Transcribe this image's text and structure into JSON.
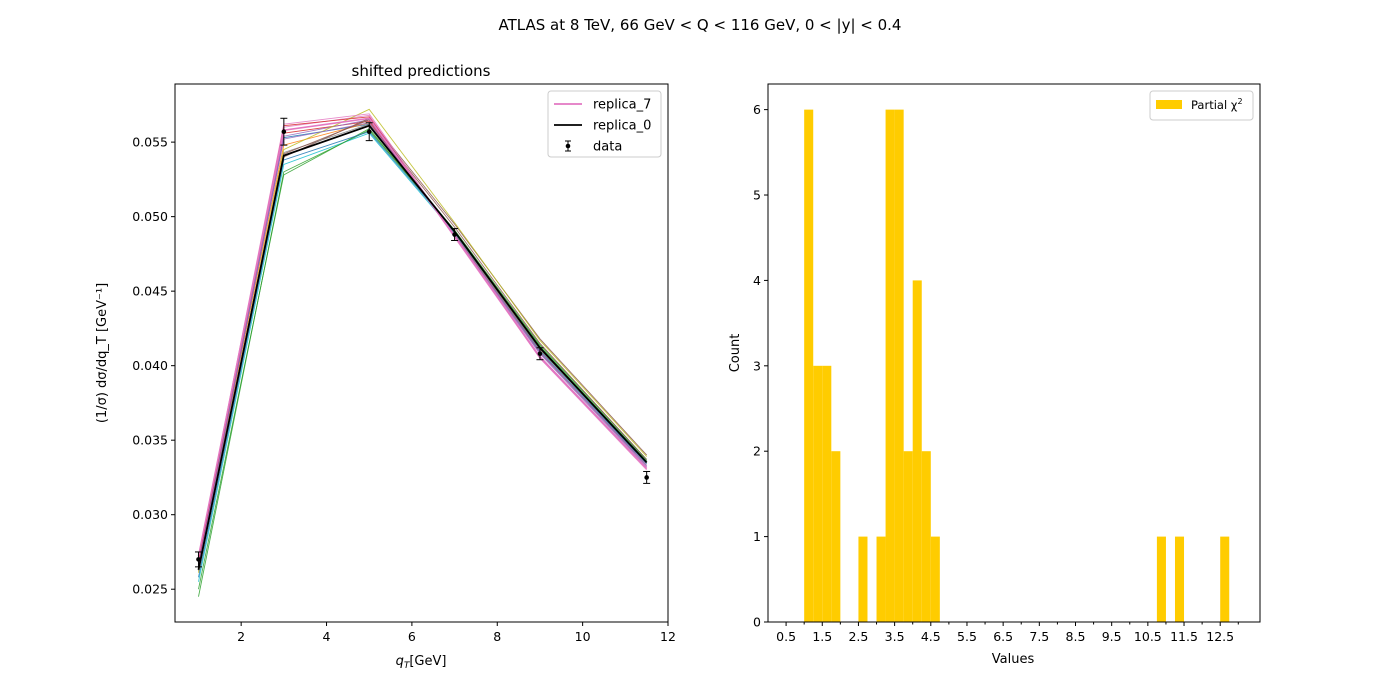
{
  "suptitle": "ATLAS at 8 TeV, 66 GeV < Q < 116 GeV, 0 < |y| < 0.4",
  "chart_data": [
    {
      "type": "line",
      "title": "shifted predictions",
      "xlabel_main": "q",
      "xlabel_sub": "T",
      "xlabel_unit": "[GeV]",
      "ylabel": "(1/σ) dσ/dq_T [GeV⁻¹]",
      "xlim": [
        0.45,
        12.0
      ],
      "ylim": [
        0.0228,
        0.0589
      ],
      "xticks": [
        "2",
        "4",
        "6",
        "8",
        "10",
        "12"
      ],
      "xtick_values": [
        2,
        4,
        6,
        8,
        10,
        12
      ],
      "yticks": [
        "0.025",
        "0.030",
        "0.035",
        "0.040",
        "0.045",
        "0.050",
        "0.055"
      ],
      "ytick_values": [
        0.025,
        0.03,
        0.035,
        0.04,
        0.045,
        0.05,
        0.055
      ],
      "x": [
        1,
        3,
        5,
        7,
        9,
        11.5
      ],
      "legend_position": "upper right",
      "legend": [
        {
          "label": "replica_7",
          "kind": "line",
          "color": "#e377c2"
        },
        {
          "label": "replica_0",
          "kind": "line",
          "color": "#000000"
        },
        {
          "label": "data",
          "kind": "errorbar",
          "color": "#000000"
        }
      ],
      "data": {
        "y": [
          0.027,
          0.0557,
          0.0557,
          0.0488,
          0.0408,
          0.0325
        ],
        "err": [
          0.0005,
          0.0009,
          0.0006,
          0.0004,
          0.0004,
          0.0004
        ]
      },
      "replica_0": [
        0.0263,
        0.0541,
        0.0561,
        0.049,
        0.0412,
        0.0335
      ],
      "replica_7": [
        0.0272,
        0.0558,
        0.0566,
        0.0487,
        0.0406,
        0.0331
      ],
      "series": [
        {
          "color": "#1f77b4",
          "values": [
            0.0265,
            0.0553,
            0.0562,
            0.0489,
            0.041,
            0.0334
          ]
        },
        {
          "color": "#ff7f0e",
          "values": [
            0.0266,
            0.0548,
            0.0563,
            0.0489,
            0.0411,
            0.0335
          ]
        },
        {
          "color": "#2ca02c",
          "values": [
            0.0245,
            0.053,
            0.0558,
            0.0491,
            0.0414,
            0.0337
          ]
        },
        {
          "color": "#d62728",
          "values": [
            0.0268,
            0.0556,
            0.0564,
            0.0488,
            0.0409,
            0.0333
          ]
        },
        {
          "color": "#9467bd",
          "values": [
            0.0267,
            0.0554,
            0.0565,
            0.0487,
            0.0408,
            0.0332
          ]
        },
        {
          "color": "#8c564b",
          "values": [
            0.0262,
            0.054,
            0.0566,
            0.0495,
            0.0418,
            0.034
          ]
        },
        {
          "color": "#e377c2",
          "values": [
            0.027,
            0.056,
            0.0568,
            0.0486,
            0.0405,
            0.0331
          ]
        },
        {
          "color": "#7f7f7f",
          "values": [
            0.0264,
            0.0543,
            0.0562,
            0.049,
            0.0411,
            0.0335
          ]
        },
        {
          "color": "#bcbd22",
          "values": [
            0.0261,
            0.0545,
            0.0572,
            0.0496,
            0.0417,
            0.0339
          ]
        },
        {
          "color": "#17becf",
          "values": [
            0.0255,
            0.0535,
            0.0556,
            0.0489,
            0.0412,
            0.0336
          ]
        },
        {
          "color": "#2ca02c",
          "values": [
            0.025,
            0.0528,
            0.0559,
            0.049,
            0.0413,
            0.0336
          ]
        },
        {
          "color": "#d62728",
          "values": [
            0.0269,
            0.0561,
            0.0567,
            0.0487,
            0.0406,
            0.0331
          ]
        },
        {
          "color": "#9467bd",
          "values": [
            0.0266,
            0.0552,
            0.0563,
            0.0488,
            0.0409,
            0.0333
          ]
        },
        {
          "color": "#1f77b4",
          "values": [
            0.0258,
            0.0538,
            0.0557,
            0.049,
            0.0412,
            0.0335
          ]
        },
        {
          "color": "#8c564b",
          "values": [
            0.0263,
            0.0542,
            0.0565,
            0.0493,
            0.0415,
            0.0337
          ]
        },
        {
          "color": "#e377c2",
          "values": [
            0.0271,
            0.0562,
            0.0569,
            0.0487,
            0.0405,
            0.033
          ]
        }
      ]
    },
    {
      "type": "bar",
      "xlabel": "Values",
      "ylabel": "Count",
      "xlim": [
        0.0,
        13.6
      ],
      "ylim": [
        0,
        6.3
      ],
      "bar_color": "#ffcc00",
      "legend_position": "upper right",
      "legend_label_main": "Partial χ",
      "legend_label_sup": "2",
      "xticks": [
        "0.5",
        "1.5",
        "2.5",
        "3.5",
        "4.5",
        "5.5",
        "6.5",
        "7.5",
        "8.5",
        "9.5",
        "10.5",
        "11.5",
        "12.5"
      ],
      "xtick_values": [
        0.5,
        1.5,
        2.5,
        3.5,
        4.5,
        5.5,
        6.5,
        7.5,
        8.5,
        9.5,
        10.5,
        11.5,
        12.5
      ],
      "yticks": [
        "0",
        "1",
        "2",
        "3",
        "4",
        "5",
        "6"
      ],
      "ytick_values": [
        0,
        1,
        2,
        3,
        4,
        5,
        6
      ],
      "bin_width": 0.25,
      "bins": [
        {
          "x": 1.0,
          "count": 6
        },
        {
          "x": 1.25,
          "count": 3
        },
        {
          "x": 1.5,
          "count": 3
        },
        {
          "x": 1.75,
          "count": 2
        },
        {
          "x": 2.5,
          "count": 1
        },
        {
          "x": 3.0,
          "count": 1
        },
        {
          "x": 3.25,
          "count": 6
        },
        {
          "x": 3.5,
          "count": 6
        },
        {
          "x": 3.75,
          "count": 2
        },
        {
          "x": 4.0,
          "count": 4
        },
        {
          "x": 4.25,
          "count": 2
        },
        {
          "x": 4.5,
          "count": 1
        },
        {
          "x": 10.75,
          "count": 1
        },
        {
          "x": 11.25,
          "count": 1
        },
        {
          "x": 12.5,
          "count": 1
        }
      ]
    }
  ]
}
